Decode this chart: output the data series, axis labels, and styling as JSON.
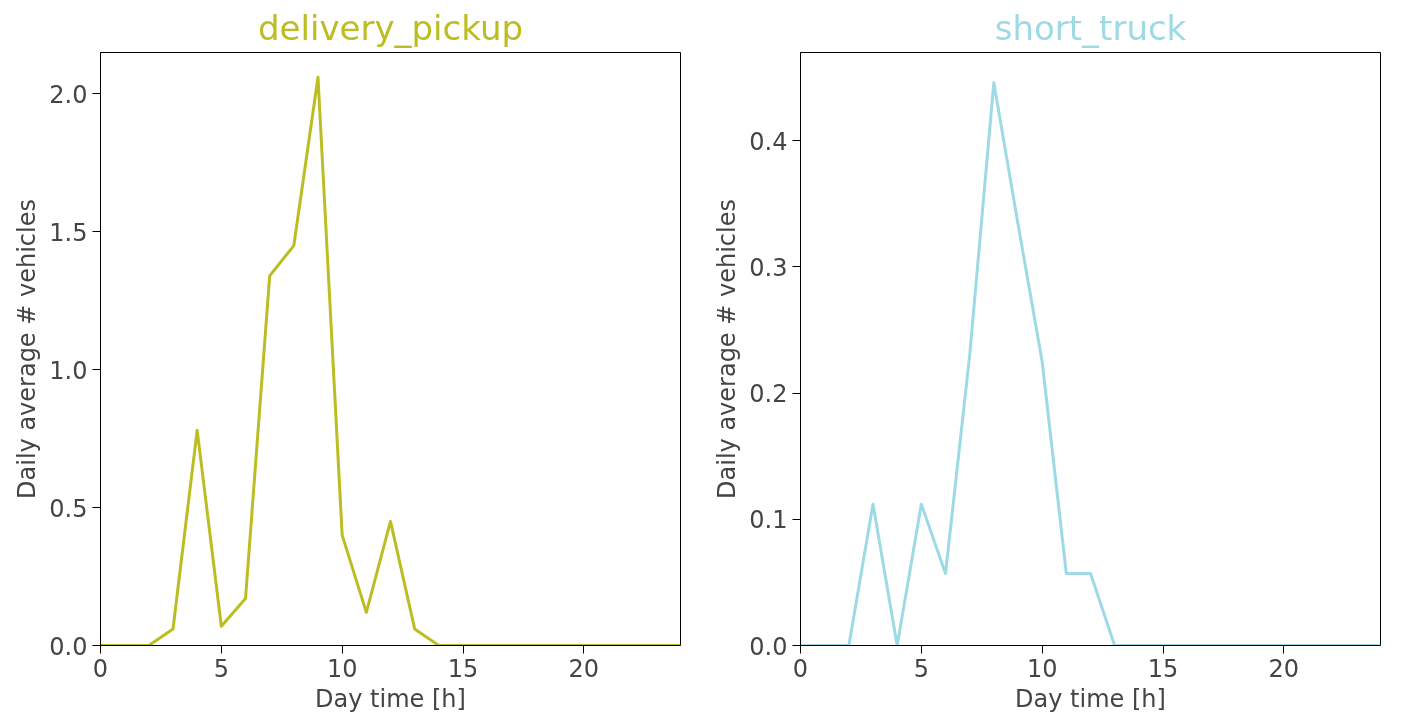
{
  "chart_data": [
    {
      "type": "line",
      "title": "delivery_pickup",
      "xlabel": "Day time [h]",
      "ylabel": "Daily average # vehicles",
      "x": [
        0,
        1,
        2,
        3,
        4,
        5,
        6,
        7,
        8,
        9,
        10,
        11,
        12,
        13,
        14,
        15,
        16,
        17,
        18,
        19,
        20,
        21,
        22,
        23,
        24
      ],
      "series": [
        {
          "color": "#bcbd22",
          "values": [
            0,
            0,
            0,
            0.06,
            0.78,
            0.07,
            0.17,
            1.34,
            1.45,
            2.06,
            0.4,
            0.12,
            0.45,
            0.06,
            0,
            0,
            0,
            0,
            0,
            0,
            0,
            0,
            0,
            0,
            0
          ]
        }
      ],
      "xlim": [
        0,
        24
      ],
      "ylim": [
        0,
        2.15
      ],
      "xticks": [
        0,
        5,
        10,
        15,
        20
      ],
      "yticks": [
        {
          "value": 0,
          "label": "0.0"
        },
        0.5,
        {
          "value": 1,
          "label": "1.0"
        },
        1.5,
        {
          "value": 2,
          "label": "2.0"
        }
      ],
      "grid": false
    },
    {
      "type": "line",
      "title": "short_truck",
      "xlabel": "Day time [h]",
      "ylabel": "Daily average # vehicles",
      "x": [
        0,
        1,
        2,
        3,
        4,
        5,
        6,
        7,
        8,
        9,
        10,
        11,
        12,
        13,
        14,
        15,
        16,
        17,
        18,
        19,
        20,
        21,
        22,
        23,
        24
      ],
      "series": [
        {
          "color": "#9edae5",
          "values": [
            0,
            0,
            0,
            0.112,
            0,
            0.112,
            0.057,
            0.23,
            0.446,
            0.334,
            0.225,
            0.057,
            0.057,
            0,
            0,
            0,
            0,
            0,
            0,
            0,
            0,
            0,
            0,
            0,
            0
          ]
        }
      ],
      "xlim": [
        0,
        24
      ],
      "ylim": [
        0,
        0.47
      ],
      "xticks": [
        0,
        5,
        10,
        15,
        20
      ],
      "yticks": [
        {
          "value": 0,
          "label": "0.0"
        },
        0.1,
        0.2,
        0.3,
        0.4
      ],
      "grid": false
    }
  ]
}
